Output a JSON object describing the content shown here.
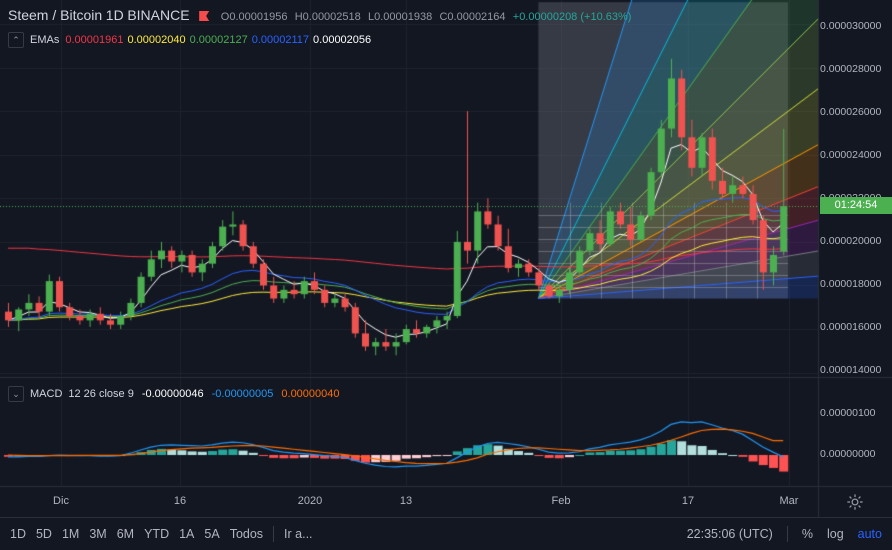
{
  "header": {
    "symbol": "Steem / Bitcoin",
    "interval": "1D",
    "exchange": "BINANCE",
    "open": "O0.00001956",
    "high": "H0.00002518",
    "low": "L0.00001938",
    "close": "C0.00002164",
    "change": "+0.00000208 (+10.63%)"
  },
  "ema_legend": {
    "name": "EMAs",
    "v1": "0.00001961",
    "v2": "0.00002040",
    "v3": "0.00002127",
    "v4": "0.00002117",
    "v5": "0.00002056"
  },
  "macd_legend": {
    "name": "MACD",
    "params": "12 26 close 9",
    "hist": "-0.00000046",
    "macd": "-0.00000005",
    "signal": "0.00000040"
  },
  "price_axis": [
    "0.000030000",
    "0.000028000",
    "0.000026000",
    "0.000024000",
    "0.000022000",
    "0.000020000",
    "0.000018000",
    "0.000016000",
    "0.000014000"
  ],
  "macd_axis": [
    "0.00000100",
    "0.00000000"
  ],
  "countdown": "01:24:54",
  "time_axis": [
    "Dic",
    "16",
    "2020",
    "13",
    "Feb",
    "17",
    "Mar"
  ],
  "bottom_bar": {
    "timeframes": [
      "1D",
      "5D",
      "1M",
      "3M",
      "6M",
      "YTD",
      "1A",
      "5A",
      "Todos"
    ],
    "goto": "Ir a...",
    "clock": "22:35:06 (UTC)",
    "percent": "%",
    "log": "log",
    "auto": "auto"
  },
  "colors": {
    "up": "#4caf50",
    "down": "#ef5350",
    "ema1": "#f23645",
    "ema2": "#ffeb3b",
    "ema3": "#4caf50",
    "ema4": "#2962ff",
    "ema5": "#ffffff",
    "macd": "#2196f3",
    "signal": "#ff6d00"
  },
  "chart_data": {
    "type": "candlestick",
    "title": "Steem / Bitcoin 1D BINANCE",
    "ylim": [
      1.4e-05,
      3.1e-05
    ],
    "candles": [
      [
        1.68e-05,
        1.72e-05,
        1.61e-05,
        1.64e-05
      ],
      [
        1.64e-05,
        1.7e-05,
        1.59e-05,
        1.69e-05
      ],
      [
        1.69e-05,
        1.76e-05,
        1.66e-05,
        1.72e-05
      ],
      [
        1.72e-05,
        1.75e-05,
        1.65e-05,
        1.68e-05
      ],
      [
        1.68e-05,
        1.85e-05,
        1.66e-05,
        1.82e-05
      ],
      [
        1.82e-05,
        1.84e-05,
        1.68e-05,
        1.7e-05
      ],
      [
        1.7e-05,
        1.72e-05,
        1.64e-05,
        1.66e-05
      ],
      [
        1.66e-05,
        1.69e-05,
        1.62e-05,
        1.64e-05
      ],
      [
        1.64e-05,
        1.69e-05,
        1.61e-05,
        1.67e-05
      ],
      [
        1.67e-05,
        1.7e-05,
        1.62e-05,
        1.64e-05
      ],
      [
        1.64e-05,
        1.67e-05,
        1.6e-05,
        1.62e-05
      ],
      [
        1.62e-05,
        1.68e-05,
        1.6e-05,
        1.66e-05
      ],
      [
        1.66e-05,
        1.74e-05,
        1.64e-05,
        1.72e-05
      ],
      [
        1.72e-05,
        1.86e-05,
        1.7e-05,
        1.84e-05
      ],
      [
        1.84e-05,
        1.96e-05,
        1.82e-05,
        1.92e-05
      ],
      [
        1.92e-05,
        2e-05,
        1.88e-05,
        1.96e-05
      ],
      [
        1.96e-05,
        1.98e-05,
        1.88e-05,
        1.91e-05
      ],
      [
        1.91e-05,
        1.96e-05,
        1.86e-05,
        1.94e-05
      ],
      [
        1.94e-05,
        1.96e-05,
        1.84e-05,
        1.86e-05
      ],
      [
        1.86e-05,
        1.92e-05,
        1.82e-05,
        1.9e-05
      ],
      [
        1.9e-05,
        2e-05,
        1.88e-05,
        1.98e-05
      ],
      [
        1.98e-05,
        2.1e-05,
        1.96e-05,
        2.07e-05
      ],
      [
        2.07e-05,
        2.14e-05,
        2.03e-05,
        2.08e-05
      ],
      [
        2.08e-05,
        2.1e-05,
        1.96e-05,
        1.98e-05
      ],
      [
        1.98e-05,
        2e-05,
        1.88e-05,
        1.9e-05
      ],
      [
        1.9e-05,
        1.92e-05,
        1.78e-05,
        1.8e-05
      ],
      [
        1.8e-05,
        1.84e-05,
        1.72e-05,
        1.74e-05
      ],
      [
        1.74e-05,
        1.8e-05,
        1.72e-05,
        1.78e-05
      ],
      [
        1.78e-05,
        1.82e-05,
        1.74e-05,
        1.76e-05
      ],
      [
        1.76e-05,
        1.84e-05,
        1.74e-05,
        1.82e-05
      ],
      [
        1.82e-05,
        1.86e-05,
        1.76e-05,
        1.78e-05
      ],
      [
        1.78e-05,
        1.8e-05,
        1.7e-05,
        1.72e-05
      ],
      [
        1.72e-05,
        1.76e-05,
        1.7e-05,
        1.74e-05
      ],
      [
        1.74e-05,
        1.76e-05,
        1.68e-05,
        1.7e-05
      ],
      [
        1.7e-05,
        1.72e-05,
        1.56e-05,
        1.58e-05
      ],
      [
        1.58e-05,
        1.64e-05,
        1.5e-05,
        1.52e-05
      ],
      [
        1.52e-05,
        1.56e-05,
        1.48e-05,
        1.54e-05
      ],
      [
        1.54e-05,
        1.6e-05,
        1.5e-05,
        1.52e-05
      ],
      [
        1.52e-05,
        1.58e-05,
        1.48e-05,
        1.54e-05
      ],
      [
        1.54e-05,
        1.62e-05,
        1.53e-05,
        1.6e-05
      ],
      [
        1.6e-05,
        1.64e-05,
        1.56e-05,
        1.58e-05
      ],
      [
        1.58e-05,
        1.62e-05,
        1.56e-05,
        1.61e-05
      ],
      [
        1.61e-05,
        1.66e-05,
        1.58e-05,
        1.64e-05
      ],
      [
        1.64e-05,
        1.68e-05,
        1.6e-05,
        1.66e-05
      ],
      [
        1.66e-05,
        2.05e-05,
        1.65e-05,
        2e-05
      ],
      [
        2e-05,
        2.6e-05,
        1.9e-05,
        1.96e-05
      ],
      [
        1.96e-05,
        2.18e-05,
        1.9e-05,
        2.14e-05
      ],
      [
        2.14e-05,
        2.2e-05,
        2.06e-05,
        2.08e-05
      ],
      [
        2.08e-05,
        2.12e-05,
        1.96e-05,
        1.98e-05
      ],
      [
        1.98e-05,
        2.06e-05,
        1.86e-05,
        1.88e-05
      ],
      [
        1.88e-05,
        1.92e-05,
        1.84e-05,
        1.9e-05
      ],
      [
        1.9e-05,
        1.92e-05,
        1.84e-05,
        1.86e-05
      ],
      [
        1.86e-05,
        1.88e-05,
        1.78e-05,
        1.8e-05
      ],
      [
        1.8e-05,
        1.81e-05,
        1.74e-05,
        1.75e-05
      ],
      [
        1.75e-05,
        1.8e-05,
        1.72e-05,
        1.78e-05
      ],
      [
        1.78e-05,
        1.88e-05,
        1.76e-05,
        1.86e-05
      ],
      [
        1.86e-05,
        1.98e-05,
        1.84e-05,
        1.96e-05
      ],
      [
        1.96e-05,
        2.06e-05,
        1.94e-05,
        2.04e-05
      ],
      [
        2.04e-05,
        2.1e-05,
        1.96e-05,
        1.99e-05
      ],
      [
        1.99e-05,
        2.16e-05,
        1.98e-05,
        2.14e-05
      ],
      [
        2.14e-05,
        2.18e-05,
        2.06e-05,
        2.08e-05
      ],
      [
        2.08e-05,
        2.16e-05,
        1.98e-05,
        2.01e-05
      ],
      [
        2.01e-05,
        2.14e-05,
        2e-05,
        2.12e-05
      ],
      [
        2.12e-05,
        2.34e-05,
        2.1e-05,
        2.32e-05
      ],
      [
        2.32e-05,
        2.56e-05,
        2.3e-05,
        2.52e-05
      ],
      [
        2.52e-05,
        2.84e-05,
        2.48e-05,
        2.75e-05
      ],
      [
        2.75e-05,
        2.79e-05,
        2.42e-05,
        2.48e-05
      ],
      [
        2.48e-05,
        2.56e-05,
        2.3e-05,
        2.34e-05
      ],
      [
        2.34e-05,
        2.5e-05,
        2.3e-05,
        2.48e-05
      ],
      [
        2.48e-05,
        2.52e-05,
        2.24e-05,
        2.28e-05
      ],
      [
        2.28e-05,
        2.34e-05,
        2.2e-05,
        2.22e-05
      ],
      [
        2.22e-05,
        2.3e-05,
        2.18e-05,
        2.26e-05
      ],
      [
        2.26e-05,
        2.3e-05,
        2.2e-05,
        2.22e-05
      ],
      [
        2.22e-05,
        2.26e-05,
        2.08e-05,
        2.1e-05
      ],
      [
        2.1e-05,
        2.12e-05,
        1.78e-05,
        1.86e-05
      ],
      [
        1.86e-05,
        1.98e-05,
        1.8e-05,
        1.94e-05
      ],
      [
        1.956e-05,
        2.518e-05,
        1.938e-05,
        2.164e-05
      ]
    ],
    "macd_hist": [
      -0.05,
      -0.05,
      -0.04,
      -0.04,
      -0.02,
      -0.02,
      -0.03,
      -0.03,
      -0.02,
      -0.03,
      -0.03,
      -0.02,
      0.02,
      0.08,
      0.14,
      0.17,
      0.15,
      0.13,
      0.1,
      0.09,
      0.11,
      0.15,
      0.16,
      0.12,
      0.06,
      -0.02,
      -0.08,
      -0.09,
      -0.09,
      -0.07,
      -0.08,
      -0.1,
      -0.1,
      -0.11,
      -0.16,
      -0.21,
      -0.2,
      -0.19,
      -0.16,
      -0.1,
      -0.09,
      -0.06,
      -0.03,
      -0.01,
      0.1,
      0.19,
      0.27,
      0.3,
      0.26,
      0.17,
      0.11,
      0.06,
      -0.01,
      -0.08,
      -0.09,
      -0.06,
      0.0,
      0.07,
      0.08,
      0.12,
      0.12,
      0.13,
      0.16,
      0.23,
      0.31,
      0.41,
      0.38,
      0.27,
      0.25,
      0.14,
      0.05,
      0.0,
      -0.05,
      -0.18,
      -0.28,
      -0.36,
      -0.46
    ],
    "macd_line": [
      -0.05,
      -0.05,
      -0.04,
      -0.04,
      -0.02,
      0.0,
      -0.01,
      -0.02,
      -0.02,
      -0.03,
      -0.03,
      -0.02,
      0.05,
      0.14,
      0.22,
      0.27,
      0.28,
      0.27,
      0.26,
      0.25,
      0.28,
      0.33,
      0.36,
      0.34,
      0.29,
      0.21,
      0.12,
      0.08,
      0.05,
      0.04,
      0.01,
      -0.02,
      -0.04,
      -0.07,
      -0.15,
      -0.23,
      -0.28,
      -0.32,
      -0.33,
      -0.31,
      -0.31,
      -0.29,
      -0.26,
      -0.23,
      -0.08,
      0.08,
      0.22,
      0.32,
      0.35,
      0.32,
      0.28,
      0.23,
      0.16,
      0.08,
      0.05,
      0.06,
      0.09,
      0.17,
      0.21,
      0.28,
      0.32,
      0.36,
      0.42,
      0.52,
      0.66,
      0.85,
      0.92,
      0.9,
      0.92,
      0.84,
      0.75,
      0.68,
      0.58,
      0.4,
      0.22,
      0.08,
      -0.05
    ],
    "signal_line": [
      0.0,
      -0.01,
      -0.02,
      -0.02,
      -0.02,
      -0.02,
      -0.02,
      -0.01,
      -0.01,
      -0.01,
      -0.01,
      -0.01,
      0.01,
      0.04,
      0.08,
      0.12,
      0.15,
      0.17,
      0.19,
      0.2,
      0.21,
      0.23,
      0.25,
      0.26,
      0.26,
      0.25,
      0.22,
      0.19,
      0.16,
      0.13,
      0.1,
      0.07,
      0.04,
      0.01,
      -0.02,
      -0.07,
      -0.11,
      -0.15,
      -0.18,
      -0.21,
      -0.23,
      -0.24,
      -0.24,
      -0.23,
      -0.2,
      -0.15,
      -0.08,
      0.02,
      0.09,
      0.14,
      0.18,
      0.2,
      0.2,
      0.18,
      0.16,
      0.14,
      0.12,
      0.12,
      0.13,
      0.14,
      0.16,
      0.19,
      0.23,
      0.27,
      0.33,
      0.41,
      0.5,
      0.6,
      0.68,
      0.71,
      0.72,
      0.7,
      0.66,
      0.6,
      0.5,
      0.4,
      0.4
    ]
  }
}
